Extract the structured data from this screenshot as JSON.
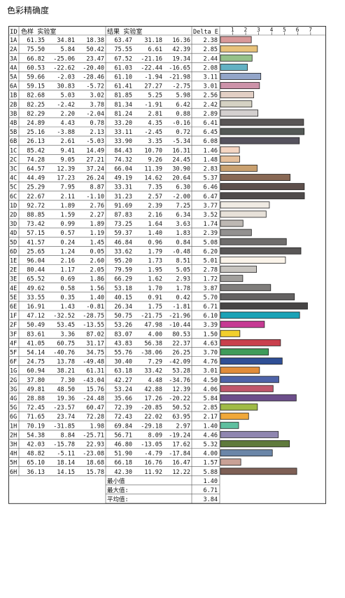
{
  "title": "色彩精确度",
  "headers": {
    "id": "ID",
    "sample": "色样 实验室",
    "result": "结果 实验室",
    "delta": "Delta E"
  },
  "chart_data": {
    "type": "bar",
    "orientation": "horizontal",
    "axis_ticks": [
      "1",
      "2",
      "3",
      "4",
      "5",
      "6",
      "7"
    ],
    "xlim": [
      0,
      7
    ],
    "rows": [
      {
        "id": "1A",
        "sample": [
          "61.35",
          "34.81",
          "18.38"
        ],
        "result": [
          "63.47",
          "31.18",
          "16.36"
        ],
        "delta": 2.38,
        "color": "#d99999"
      },
      {
        "id": "2A",
        "sample": [
          "75.50",
          "5.84",
          "50.42"
        ],
        "result": [
          "75.55",
          "6.61",
          "42.39"
        ],
        "delta": 2.85,
        "color": "#e8c27a"
      },
      {
        "id": "3A",
        "sample": [
          "66.82",
          "-25.06",
          "23.47"
        ],
        "result": [
          "67.52",
          "-21.16",
          "19.34"
        ],
        "delta": 2.44,
        "color": "#95c189"
      },
      {
        "id": "4A",
        "sample": [
          "60.53",
          "-22.62",
          "-20.40"
        ],
        "result": [
          "61.03",
          "-22.44",
          "-16.65"
        ],
        "delta": 2.08,
        "color": "#63b1c3"
      },
      {
        "id": "5A",
        "sample": [
          "59.66",
          "-2.03",
          "-28.46"
        ],
        "result": [
          "61.10",
          "-1.94",
          "-21.98"
        ],
        "delta": 3.11,
        "color": "#93a5c9"
      },
      {
        "id": "6A",
        "sample": [
          "59.15",
          "30.83",
          "-5.72"
        ],
        "result": [
          "61.41",
          "27.27",
          "-2.75"
        ],
        "delta": 3.01,
        "color": "#cc92a8"
      },
      {
        "id": "1B",
        "sample": [
          "82.68",
          "5.03",
          "3.02"
        ],
        "result": [
          "81.85",
          "5.25",
          "5.98"
        ],
        "delta": 2.56,
        "color": "#e2cfc5"
      },
      {
        "id": "2B",
        "sample": [
          "82.25",
          "-2.42",
          "3.78"
        ],
        "result": [
          "81.34",
          "-1.91",
          "6.42"
        ],
        "delta": 2.42,
        "color": "#d5d2c3"
      },
      {
        "id": "3B",
        "sample": [
          "82.29",
          "2.20",
          "-2.04"
        ],
        "result": [
          "81.24",
          "2.81",
          "0.88"
        ],
        "delta": 2.89,
        "color": "#d4d0cf"
      },
      {
        "id": "4B",
        "sample": [
          "24.89",
          "4.43",
          "0.78"
        ],
        "result": [
          "33.20",
          "4.35",
          "-0.16"
        ],
        "delta": 6.41,
        "color": "#5a5656"
      },
      {
        "id": "5B",
        "sample": [
          "25.16",
          "-3.88",
          "2.13"
        ],
        "result": [
          "33.11",
          "-2.45",
          "0.72"
        ],
        "delta": 6.45,
        "color": "#545956"
      },
      {
        "id": "6B",
        "sample": [
          "26.13",
          "2.61",
          "-5.03"
        ],
        "result": [
          "33.90",
          "3.35",
          "-5.34"
        ],
        "delta": 6.08,
        "color": "#56535e"
      },
      {
        "id": "1C",
        "sample": [
          "85.42",
          "9.41",
          "14.49"
        ],
        "result": [
          "84.43",
          "10.70",
          "16.31"
        ],
        "delta": 1.46,
        "color": "#f5d6c3"
      },
      {
        "id": "2C",
        "sample": [
          "74.28",
          "9.05",
          "27.21"
        ],
        "result": [
          "74.32",
          "9.26",
          "24.45"
        ],
        "delta": 1.48,
        "color": "#e6c09c"
      },
      {
        "id": "3C",
        "sample": [
          "64.57",
          "12.39",
          "37.24"
        ],
        "result": [
          "66.04",
          "11.39",
          "30.90"
        ],
        "delta": 2.83,
        "color": "#c9a06f"
      },
      {
        "id": "4C",
        "sample": [
          "44.49",
          "17.23",
          "26.24"
        ],
        "result": [
          "49.19",
          "14.62",
          "20.64"
        ],
        "delta": 5.37,
        "color": "#886854"
      },
      {
        "id": "5C",
        "sample": [
          "25.29",
          "7.95",
          "8.87"
        ],
        "result": [
          "33.31",
          "7.35",
          "6.30"
        ],
        "delta": 6.46,
        "color": "#5d4f4b"
      },
      {
        "id": "6C",
        "sample": [
          "22.67",
          "2.11",
          "-1.10"
        ],
        "result": [
          "31.23",
          "2.57",
          "-2.00"
        ],
        "delta": 6.47,
        "color": "#4f4b4b"
      },
      {
        "id": "1D",
        "sample": [
          "92.72",
          "1.89",
          "2.76"
        ],
        "result": [
          "91.69",
          "2.39",
          "7.25"
        ],
        "delta": 3.77,
        "color": "#f0ebe3"
      },
      {
        "id": "2D",
        "sample": [
          "88.85",
          "1.59",
          "2.27"
        ],
        "result": [
          "87.83",
          "2.16",
          "6.34"
        ],
        "delta": 3.52,
        "color": "#e7e1d9"
      },
      {
        "id": "3D",
        "sample": [
          "73.42",
          "0.99",
          "1.89"
        ],
        "result": [
          "73.25",
          "1.64",
          "3.63"
        ],
        "delta": 1.74,
        "color": "#bdb8b3"
      },
      {
        "id": "4D",
        "sample": [
          "57.15",
          "0.57",
          "1.19"
        ],
        "result": [
          "59.37",
          "1.40",
          "1.83"
        ],
        "delta": 2.39,
        "color": "#939190"
      },
      {
        "id": "5D",
        "sample": [
          "41.57",
          "0.24",
          "1.45"
        ],
        "result": [
          "46.84",
          "0.96",
          "0.84"
        ],
        "delta": 5.08,
        "color": "#6f6d6c"
      },
      {
        "id": "6D",
        "sample": [
          "25.65",
          "1.24",
          "0.05"
        ],
        "result": [
          "33.62",
          "1.79",
          "-0.48"
        ],
        "delta": 6.2,
        "color": "#595757"
      },
      {
        "id": "1E",
        "sample": [
          "96.04",
          "2.16",
          "2.60"
        ],
        "result": [
          "95.20",
          "1.73",
          "8.51"
        ],
        "delta": 5.01,
        "color": "#fbf4ea"
      },
      {
        "id": "2E",
        "sample": [
          "80.44",
          "1.17",
          "2.05"
        ],
        "result": [
          "79.59",
          "1.95",
          "5.05"
        ],
        "delta": 2.78,
        "color": "#c8c5c0"
      },
      {
        "id": "3E",
        "sample": [
          "65.52",
          "0.69",
          "1.86"
        ],
        "result": [
          "66.29",
          "1.62",
          "2.93"
        ],
        "delta": 1.72,
        "color": "#a19f9c"
      },
      {
        "id": "4E",
        "sample": [
          "49.62",
          "0.58",
          "1.56"
        ],
        "result": [
          "53.18",
          "1.70",
          "1.78"
        ],
        "delta": 3.87,
        "color": "#7f7d7b"
      },
      {
        "id": "5E",
        "sample": [
          "33.55",
          "0.35",
          "1.40"
        ],
        "result": [
          "40.15",
          "0.91",
          "0.42"
        ],
        "delta": 5.7,
        "color": "#636161"
      },
      {
        "id": "6E",
        "sample": [
          "16.91",
          "1.43",
          "-0.81"
        ],
        "result": [
          "26.34",
          "1.75",
          "-1.81"
        ],
        "delta": 6.71,
        "color": "#464444"
      },
      {
        "id": "1F",
        "sample": [
          "47.12",
          "-32.52",
          "-28.75"
        ],
        "result": [
          "50.75",
          "-21.75",
          "-21.96"
        ],
        "delta": 6.1,
        "color": "#1aa2b6"
      },
      {
        "id": "2F",
        "sample": [
          "50.49",
          "53.45",
          "-13.55"
        ],
        "result": [
          "53.26",
          "47.98",
          "-10.44"
        ],
        "delta": 3.39,
        "color": "#c63a93"
      },
      {
        "id": "3F",
        "sample": [
          "83.61",
          "3.36",
          "87.02"
        ],
        "result": [
          "83.07",
          "4.00",
          "80.53"
        ],
        "delta": 1.5,
        "color": "#f1cf2c"
      },
      {
        "id": "4F",
        "sample": [
          "41.05",
          "60.75",
          "31.17"
        ],
        "result": [
          "43.83",
          "56.38",
          "22.37"
        ],
        "delta": 4.63,
        "color": "#c9404d"
      },
      {
        "id": "5F",
        "sample": [
          "54.14",
          "-40.76",
          "34.75"
        ],
        "result": [
          "55.76",
          "-38.06",
          "26.25"
        ],
        "delta": 3.7,
        "color": "#3f9b5a"
      },
      {
        "id": "6F",
        "sample": [
          "24.75",
          "13.78",
          "-49.48"
        ],
        "result": [
          "30.40",
          "7.29",
          "-42.09"
        ],
        "delta": 4.76,
        "color": "#2f4f96"
      },
      {
        "id": "1G",
        "sample": [
          "60.94",
          "38.21",
          "61.31"
        ],
        "result": [
          "63.18",
          "33.42",
          "53.28"
        ],
        "delta": 3.01,
        "color": "#e08c3a"
      },
      {
        "id": "2G",
        "sample": [
          "37.80",
          "7.30",
          "-43.04"
        ],
        "result": [
          "42.27",
          "4.48",
          "-34.76"
        ],
        "delta": 4.5,
        "color": "#4e63a8"
      },
      {
        "id": "3G",
        "sample": [
          "49.81",
          "48.50",
          "15.76"
        ],
        "result": [
          "53.24",
          "42.88",
          "12.39"
        ],
        "delta": 4.06,
        "color": "#c0566b"
      },
      {
        "id": "4G",
        "sample": [
          "28.88",
          "19.36",
          "-24.48"
        ],
        "result": [
          "35.66",
          "17.26",
          "-20.22"
        ],
        "delta": 5.84,
        "color": "#6c4e8a"
      },
      {
        "id": "5G",
        "sample": [
          "72.45",
          "-23.57",
          "60.47"
        ],
        "result": [
          "72.39",
          "-20.85",
          "50.52"
        ],
        "delta": 2.85,
        "color": "#9fba45"
      },
      {
        "id": "6G",
        "sample": [
          "71.65",
          "23.74",
          "72.28"
        ],
        "result": [
          "72.43",
          "22.02",
          "63.95"
        ],
        "delta": 2.17,
        "color": "#f0a83a"
      },
      {
        "id": "1H",
        "sample": [
          "70.19",
          "-31.85",
          "1.98"
        ],
        "result": [
          "69.84",
          "-29.18",
          "2.97"
        ],
        "delta": 1.4,
        "color": "#5fbf9f"
      },
      {
        "id": "2H",
        "sample": [
          "54.38",
          "8.84",
          "-25.71"
        ],
        "result": [
          "56.71",
          "8.09",
          "-19.24"
        ],
        "delta": 4.46,
        "color": "#8f86b0"
      },
      {
        "id": "3H",
        "sample": [
          "42.03",
          "-15.78",
          "22.93"
        ],
        "result": [
          "46.80",
          "-13.05",
          "17.62"
        ],
        "delta": 5.32,
        "color": "#5f7a3c"
      },
      {
        "id": "4H",
        "sample": [
          "48.82",
          "-5.11",
          "-23.08"
        ],
        "result": [
          "51.90",
          "-4.79",
          "-17.84"
        ],
        "delta": 4.0,
        "color": "#6b86a8"
      },
      {
        "id": "5H",
        "sample": [
          "65.10",
          "18.14",
          "18.68"
        ],
        "result": [
          "66.18",
          "16.76",
          "16.47"
        ],
        "delta": 1.57,
        "color": "#c9a196"
      },
      {
        "id": "6H",
        "sample": [
          "36.13",
          "14.15",
          "15.78"
        ],
        "result": [
          "42.30",
          "11.92",
          "12.22"
        ],
        "delta": 5.88,
        "color": "#7e5f55"
      }
    ]
  },
  "summary": [
    {
      "label": "最小值",
      "value": "1.40"
    },
    {
      "label": "最大值:",
      "value": "6.71"
    },
    {
      "label": "平均值:",
      "value": "3.84"
    }
  ]
}
